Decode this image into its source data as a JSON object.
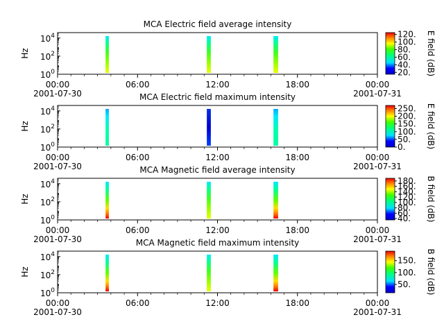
{
  "chart_data": [
    {
      "type": "heatmap",
      "title": "MCA  Electric field average intensity",
      "ylabel": "Hz",
      "xlabel": "",
      "y_ticks": [
        "10^0",
        "10^2",
        "10^4"
      ],
      "x_ticks": [
        {
          "time": "00:00",
          "date": "2001-07-30"
        },
        {
          "time": "06:00",
          "date": ""
        },
        {
          "time": "12:00",
          "date": ""
        },
        {
          "time": "18:00",
          "date": ""
        },
        {
          "time": "00:00",
          "date": "2001-07-31"
        }
      ],
      "colorbar": {
        "label": "E field (dB)",
        "ticks": [
          "20.",
          "40.",
          "60.",
          "80.",
          "100.",
          "120."
        ],
        "range": [
          15,
          125
        ]
      },
      "passes": [
        {
          "start_hour": 3.6,
          "end_hour": 3.85,
          "fill": "green"
        },
        {
          "start_hour": 11.2,
          "end_hour": 11.5,
          "fill": "green"
        },
        {
          "start_hour": 16.2,
          "end_hour": 16.55,
          "fill": "green"
        }
      ]
    },
    {
      "type": "heatmap",
      "title": "MCA  Electric field maximum intensity",
      "ylabel": "Hz",
      "xlabel": "",
      "y_ticks": [
        "10^0",
        "10^2",
        "10^4"
      ],
      "x_ticks": [
        {
          "time": "00:00",
          "date": "2001-07-30"
        },
        {
          "time": "06:00",
          "date": ""
        },
        {
          "time": "12:00",
          "date": ""
        },
        {
          "time": "18:00",
          "date": ""
        },
        {
          "time": "00:00",
          "date": "2001-07-31"
        }
      ],
      "colorbar": {
        "label": "E field (dB)",
        "ticks": [
          "0.",
          "50.",
          "100.",
          "150.",
          "200.",
          "250."
        ],
        "range": [
          0,
          270
        ]
      },
      "passes": [
        {
          "start_hour": 3.6,
          "end_hour": 3.85,
          "fill": "cyan"
        },
        {
          "start_hour": 11.2,
          "end_hour": 11.5,
          "fill": "blue"
        },
        {
          "start_hour": 16.2,
          "end_hour": 16.55,
          "fill": "cyan"
        }
      ]
    },
    {
      "type": "heatmap",
      "title": "MCA  Magnetic field average intensity",
      "ylabel": "Hz",
      "xlabel": "",
      "y_ticks": [
        "10^0",
        "10^2",
        "10^4"
      ],
      "x_ticks": [
        {
          "time": "00:00",
          "date": "2001-07-30"
        },
        {
          "time": "06:00",
          "date": ""
        },
        {
          "time": "12:00",
          "date": ""
        },
        {
          "time": "18:00",
          "date": ""
        },
        {
          "time": "00:00",
          "date": "2001-07-31"
        }
      ],
      "colorbar": {
        "label": "B field (dB)",
        "ticks": [
          "40.",
          "60.",
          "80.",
          "100.",
          "120.",
          "140.",
          "160.",
          "180."
        ],
        "range": [
          35,
          190
        ]
      },
      "passes": [
        {
          "start_hour": 3.6,
          "end_hour": 3.85,
          "fill": "green-red"
        },
        {
          "start_hour": 11.2,
          "end_hour": 11.5,
          "fill": "green"
        },
        {
          "start_hour": 16.2,
          "end_hour": 16.55,
          "fill": "green-red"
        }
      ]
    },
    {
      "type": "heatmap",
      "title": "MCA  Magnetic field maximum intensity",
      "ylabel": "Hz",
      "xlabel": "",
      "y_ticks": [
        "10^0",
        "10^2",
        "10^4"
      ],
      "x_ticks": [
        {
          "time": "00:00",
          "date": "2001-07-30"
        },
        {
          "time": "06:00",
          "date": ""
        },
        {
          "time": "12:00",
          "date": ""
        },
        {
          "time": "18:00",
          "date": ""
        },
        {
          "time": "00:00",
          "date": "2001-07-31"
        }
      ],
      "colorbar": {
        "label": "B field (dB)",
        "ticks": [
          "50.",
          "100.",
          "150."
        ],
        "range": [
          15,
          190
        ]
      },
      "passes": [
        {
          "start_hour": 3.6,
          "end_hour": 3.85,
          "fill": "green-red"
        },
        {
          "start_hour": 11.2,
          "end_hour": 11.5,
          "fill": "green"
        },
        {
          "start_hour": 16.2,
          "end_hour": 16.55,
          "fill": "green-red"
        }
      ]
    }
  ]
}
